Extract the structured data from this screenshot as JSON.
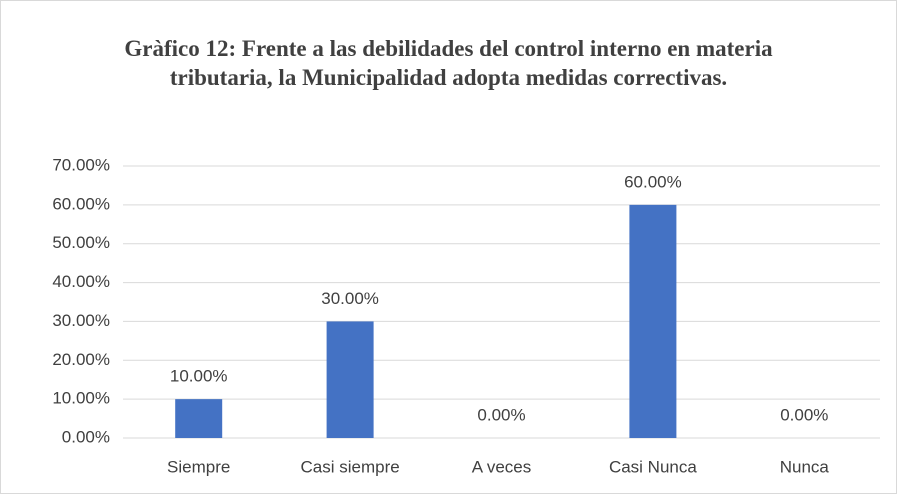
{
  "chart_data": {
    "type": "bar",
    "title": "Gràfico 12: Frente a las debilidades del control interno en materia tributaria, la Municipalidad adopta medidas correctivas.",
    "categories": [
      "Siempre",
      "Casi siempre",
      "A veces",
      "Casi Nunca",
      "Nunca"
    ],
    "values": [
      10,
      30,
      0,
      60,
      0
    ],
    "value_labels": [
      "10.00%",
      "30.00%",
      "0.00%",
      "60.00%",
      "0.00%"
    ],
    "color": "#4472c4",
    "ylim": [
      0,
      70
    ],
    "yticks": [
      {
        "value": 0,
        "label": "0.00%"
      },
      {
        "value": 10,
        "label": "10.00%"
      },
      {
        "value": 20,
        "label": "20.00%"
      },
      {
        "value": 30,
        "label": "30.00%"
      },
      {
        "value": 40,
        "label": "40.00%"
      },
      {
        "value": 50,
        "label": "50.00%"
      },
      {
        "value": 60,
        "label": "60.00%"
      },
      {
        "value": 70,
        "label": "70.00%"
      }
    ],
    "grid": true
  }
}
